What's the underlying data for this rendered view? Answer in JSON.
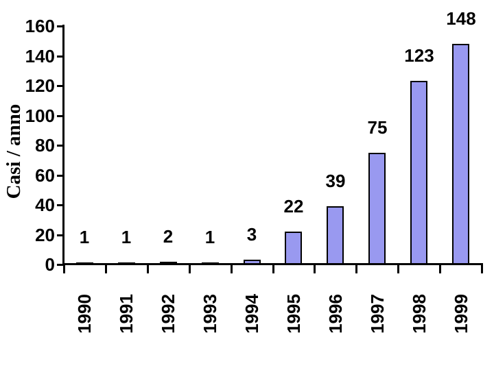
{
  "chart_data": {
    "type": "bar",
    "title": "",
    "xlabel": "",
    "ylabel": "Casi / anno",
    "categories": [
      "1990",
      "1991",
      "1992",
      "1993",
      "1994",
      "1995",
      "1996",
      "1997",
      "1998",
      "1999"
    ],
    "values": [
      1,
      1,
      2,
      1,
      3,
      22,
      39,
      75,
      123,
      148
    ],
    "data_labels": [
      "1",
      "1",
      "2",
      "1",
      "3",
      "22",
      "39",
      "75",
      "123",
      "148"
    ],
    "ylim": [
      0,
      160
    ],
    "ytick_step": 20,
    "yticks": [
      0,
      20,
      40,
      60,
      80,
      100,
      120,
      140,
      160
    ],
    "grid": false,
    "legend": null,
    "colors": {
      "bar_fill": "#9999F0",
      "bar_border": "#000000",
      "axis": "#000000",
      "text": "#000000",
      "background": "#FFFFFF"
    }
  }
}
